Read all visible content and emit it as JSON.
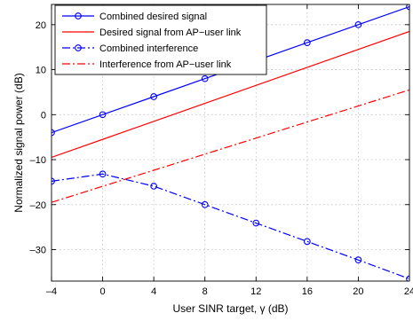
{
  "chart_data": {
    "type": "line",
    "xlabel": "User SINR target, γ (dB)",
    "ylabel": "Normalized signal power (dB)",
    "xlim": [
      -4,
      24
    ],
    "ylim": [
      -37,
      24.5
    ],
    "xticks": [
      -4,
      0,
      4,
      8,
      12,
      16,
      20,
      24
    ],
    "xtick_labels": [
      "–4",
      "0",
      "4",
      "8",
      "12",
      "16",
      "20",
      "24"
    ],
    "yticks": [
      20,
      10,
      0,
      -10,
      -20,
      -30
    ],
    "ytick_labels": [
      "20",
      "10",
      "0",
      "–10",
      "–20",
      "–30"
    ],
    "grid": true,
    "legend_position": "top-left",
    "series": [
      {
        "name": "Combined desired signal",
        "color": "#0000ff",
        "line": "solid",
        "marker": "circle",
        "x": [
          -4,
          0,
          4,
          8,
          12,
          16,
          20,
          24
        ],
        "y": [
          -4,
          0,
          4,
          8,
          12,
          16,
          20,
          24
        ]
      },
      {
        "name": "Desired signal from AP−user link",
        "color": "#ff0000",
        "line": "solid",
        "marker": "none",
        "x": [
          -4,
          24
        ],
        "y": [
          -9.5,
          18.5
        ]
      },
      {
        "name": "Combined interference",
        "color": "#0000ff",
        "line": "dashdot",
        "marker": "circle",
        "x": [
          -4,
          0,
          4,
          8,
          12,
          16,
          20,
          24
        ],
        "y": [
          -14.8,
          -13.2,
          -15.9,
          -20,
          -24.1,
          -28.2,
          -32.3,
          -36.5
        ]
      },
      {
        "name": "Interference from AP−user link",
        "color": "#ff0000",
        "line": "dashdot",
        "marker": "none",
        "x": [
          -4,
          24
        ],
        "y": [
          -19.5,
          5.5
        ]
      }
    ]
  }
}
